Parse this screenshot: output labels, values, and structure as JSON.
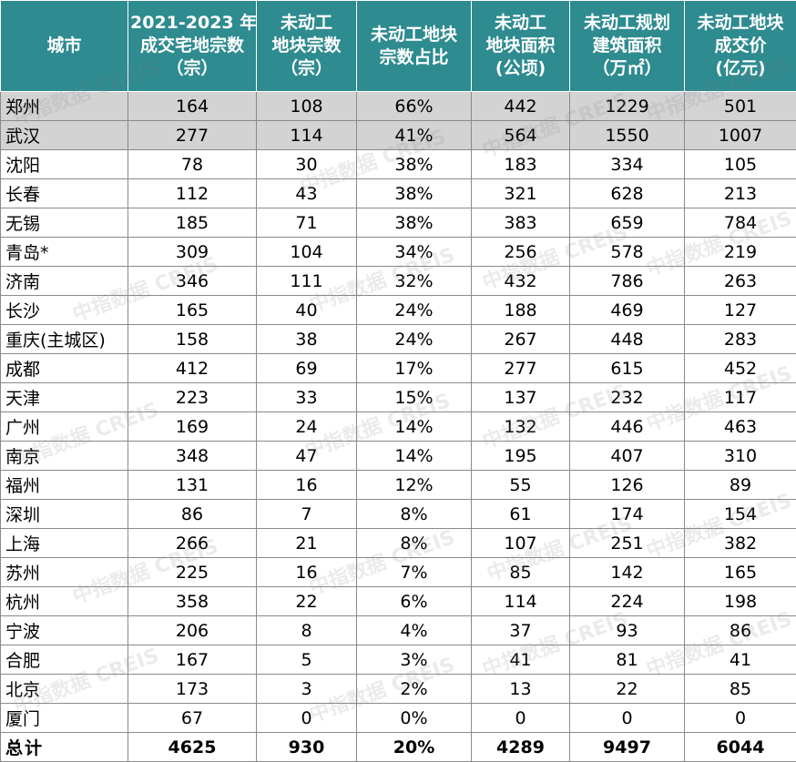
{
  "headers": [
    {
      "lines": [
        "城市"
      ]
    },
    {
      "lines": [
        "2021-2023 年",
        "成交宅地宗数",
        "（宗）"
      ]
    },
    {
      "lines": [
        "未动工",
        "地块宗数",
        "（宗）"
      ]
    },
    {
      "lines": [
        "未动工地块",
        "宗数占比"
      ]
    },
    {
      "lines": [
        "未动工",
        "地块面积",
        "(公顷)"
      ]
    },
    {
      "lines": [
        "未动工规划",
        "建筑面积",
        "（万㎡）"
      ]
    },
    {
      "lines": [
        "未动工地块",
        "成交价",
        "(亿元)"
      ]
    }
  ],
  "rows": [
    {
      "city": "郑州",
      "deals": "164",
      "idle_count": "108",
      "idle_share": "66%",
      "idle_area": "442",
      "idle_gfa": "1229",
      "idle_price": "501",
      "highlight": true
    },
    {
      "city": "武汉",
      "deals": "277",
      "idle_count": "114",
      "idle_share": "41%",
      "idle_area": "564",
      "idle_gfa": "1550",
      "idle_price": "1007",
      "highlight": true
    },
    {
      "city": "沈阳",
      "deals": "78",
      "idle_count": "30",
      "idle_share": "38%",
      "idle_area": "183",
      "idle_gfa": "334",
      "idle_price": "105"
    },
    {
      "city": "长春",
      "deals": "112",
      "idle_count": "43",
      "idle_share": "38%",
      "idle_area": "321",
      "idle_gfa": "628",
      "idle_price": "213"
    },
    {
      "city": "无锡",
      "deals": "185",
      "idle_count": "71",
      "idle_share": "38%",
      "idle_area": "383",
      "idle_gfa": "659",
      "idle_price": "784"
    },
    {
      "city": "青岛*",
      "deals": "309",
      "idle_count": "104",
      "idle_share": "34%",
      "idle_area": "256",
      "idle_gfa": "578",
      "idle_price": "219"
    },
    {
      "city": "济南",
      "deals": "346",
      "idle_count": "111",
      "idle_share": "32%",
      "idle_area": "432",
      "idle_gfa": "786",
      "idle_price": "263"
    },
    {
      "city": "长沙",
      "deals": "165",
      "idle_count": "40",
      "idle_share": "24%",
      "idle_area": "188",
      "idle_gfa": "469",
      "idle_price": "127"
    },
    {
      "city": "重庆(主城区)",
      "deals": "158",
      "idle_count": "38",
      "idle_share": "24%",
      "idle_area": "267",
      "idle_gfa": "448",
      "idle_price": "283"
    },
    {
      "city": "成都",
      "deals": "412",
      "idle_count": "69",
      "idle_share": "17%",
      "idle_area": "277",
      "idle_gfa": "615",
      "idle_price": "452"
    },
    {
      "city": "天津",
      "deals": "223",
      "idle_count": "33",
      "idle_share": "15%",
      "idle_area": "137",
      "idle_gfa": "232",
      "idle_price": "117"
    },
    {
      "city": "广州",
      "deals": "169",
      "idle_count": "24",
      "idle_share": "14%",
      "idle_area": "132",
      "idle_gfa": "446",
      "idle_price": "463"
    },
    {
      "city": "南京",
      "deals": "348",
      "idle_count": "47",
      "idle_share": "14%",
      "idle_area": "195",
      "idle_gfa": "407",
      "idle_price": "310"
    },
    {
      "city": "福州",
      "deals": "131",
      "idle_count": "16",
      "idle_share": "12%",
      "idle_area": "55",
      "idle_gfa": "126",
      "idle_price": "89"
    },
    {
      "city": "深圳",
      "deals": "86",
      "idle_count": "7",
      "idle_share": "8%",
      "idle_area": "61",
      "idle_gfa": "174",
      "idle_price": "154"
    },
    {
      "city": "上海",
      "deals": "266",
      "idle_count": "21",
      "idle_share": "8%",
      "idle_area": "107",
      "idle_gfa": "251",
      "idle_price": "382"
    },
    {
      "city": "苏州",
      "deals": "225",
      "idle_count": "16",
      "idle_share": "7%",
      "idle_area": "85",
      "idle_gfa": "142",
      "idle_price": "165"
    },
    {
      "city": "杭州",
      "deals": "358",
      "idle_count": "22",
      "idle_share": "6%",
      "idle_area": "114",
      "idle_gfa": "224",
      "idle_price": "198"
    },
    {
      "city": "宁波",
      "deals": "206",
      "idle_count": "8",
      "idle_share": "4%",
      "idle_area": "37",
      "idle_gfa": "93",
      "idle_price": "86"
    },
    {
      "city": "合肥",
      "deals": "167",
      "idle_count": "5",
      "idle_share": "3%",
      "idle_area": "41",
      "idle_gfa": "81",
      "idle_price": "41"
    },
    {
      "city": "北京",
      "deals": "173",
      "idle_count": "3",
      "idle_share": "2%",
      "idle_area": "13",
      "idle_gfa": "22",
      "idle_price": "85"
    },
    {
      "city": "厦门",
      "deals": "67",
      "idle_count": "0",
      "idle_share": "0%",
      "idle_area": "0",
      "idle_gfa": "0",
      "idle_price": "0"
    }
  ],
  "total": {
    "city": "总计",
    "deals": "4625",
    "idle_count": "930",
    "idle_share": "20%",
    "idle_area": "4289",
    "idle_gfa": "9497",
    "idle_price": "6044"
  },
  "watermark": "中指数据 CREIS",
  "colors": {
    "header_bg": "#2e8b8f",
    "header_text": "#ffffff",
    "highlight_row": "#d3d3d3",
    "grid": "#8a8a8a"
  }
}
